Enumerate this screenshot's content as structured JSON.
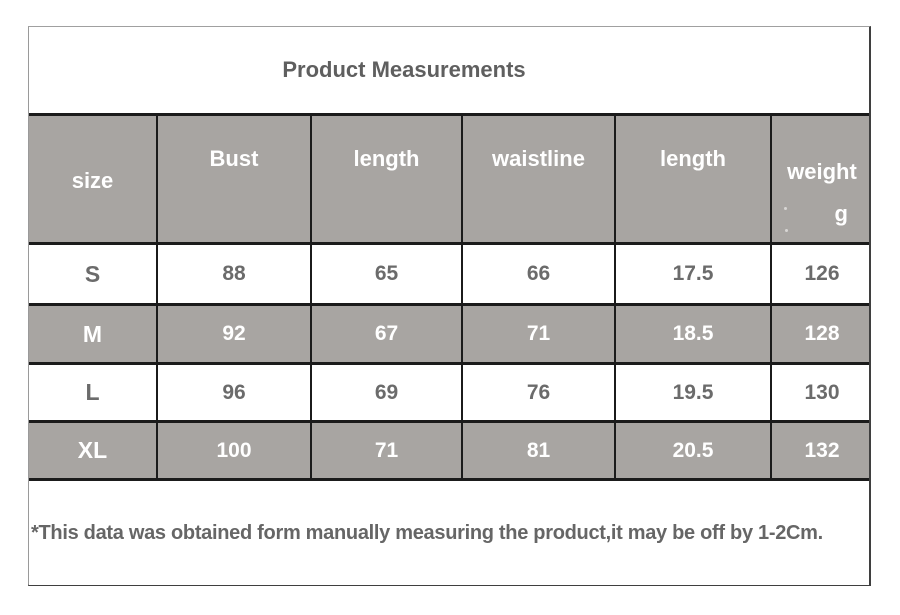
{
  "chart_data": {
    "type": "table",
    "title": "Product Measurements",
    "columns": [
      "size",
      "Bust",
      "length",
      "waistline",
      "length",
      "weight"
    ],
    "weight_unit_remnant": "g",
    "rows": [
      [
        "S",
        "88",
        "65",
        "66",
        "17.5",
        "126"
      ],
      [
        "M",
        "92",
        "67",
        "71",
        "18.5",
        "128"
      ],
      [
        "L",
        "96",
        "69",
        "76",
        "19.5",
        "130"
      ],
      [
        "XL",
        "100",
        "71",
        "81",
        "20.5",
        "132"
      ]
    ],
    "shaded_rows": [
      1,
      3
    ],
    "footnote": "*This data was obtained form manually measuring the product,it may be off by 1-2Cm.",
    "layout": "title row, header row, 4 data rows with alternating shading, footnote row"
  },
  "colors": {
    "shaded_cell": "#a8a5a2",
    "border_dark": "#1b1b1b",
    "text_gray": "#6b6b6b",
    "text_white": "#ffffff",
    "title_text": "#5f5f5f"
  }
}
